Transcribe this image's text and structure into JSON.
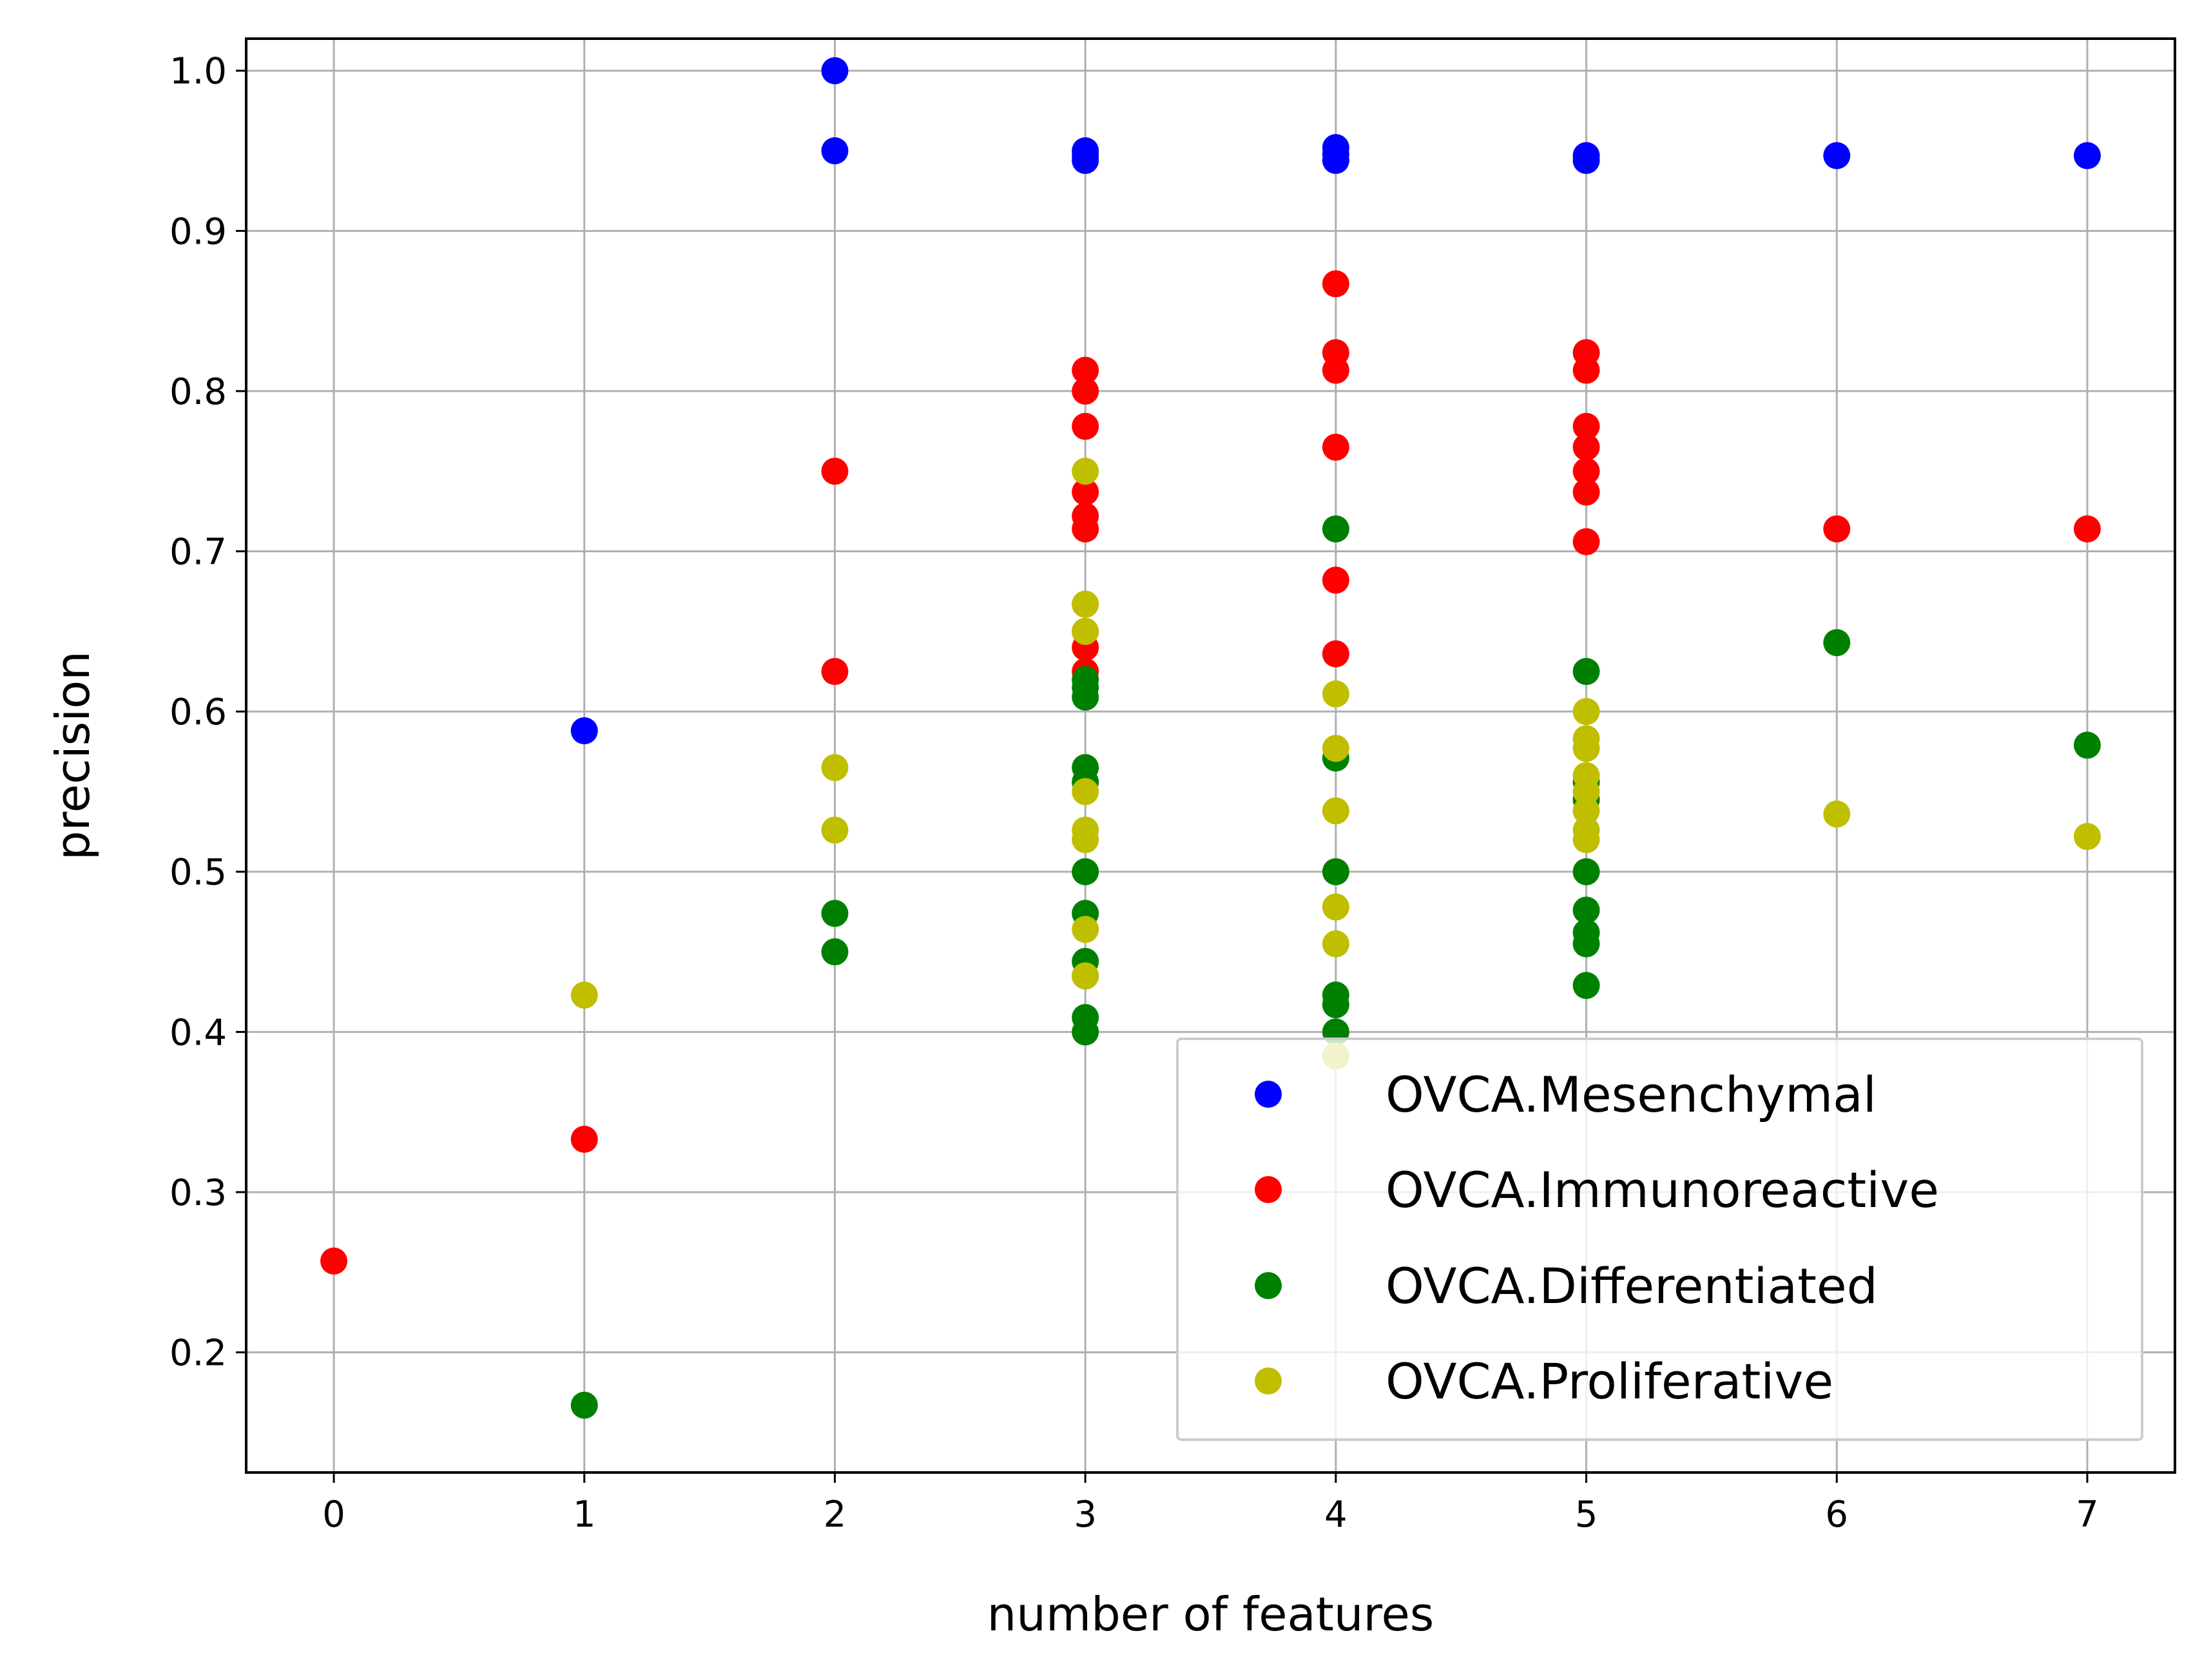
{
  "chart_data": {
    "type": "scatter",
    "title": "",
    "xlabel": "number of features",
    "ylabel": "precision",
    "xlim": [
      -0.35,
      7.35
    ],
    "ylim": [
      0.125,
      1.02
    ],
    "xticks": [
      0,
      1,
      2,
      3,
      4,
      5,
      6,
      7
    ],
    "yticks": [
      0.2,
      0.3,
      0.4,
      0.5,
      0.6,
      0.7,
      0.8,
      0.9,
      1.0
    ],
    "xtick_labels": [
      "0",
      "1",
      "2",
      "3",
      "4",
      "5",
      "6",
      "7"
    ],
    "ytick_labels": [
      "0.2",
      "0.3",
      "0.4",
      "0.5",
      "0.6",
      "0.7",
      "0.8",
      "0.9",
      "1.0"
    ],
    "grid": true,
    "legend_position": "bottom-right",
    "series": [
      {
        "name": "OVCA.Mesenchymal",
        "color": "#0000ff",
        "points": [
          [
            1,
            0.588
          ],
          [
            2,
            1.0
          ],
          [
            2,
            0.95
          ],
          [
            3,
            0.95
          ],
          [
            3,
            0.947
          ],
          [
            3,
            0.944
          ],
          [
            4,
            0.952
          ],
          [
            4,
            0.948
          ],
          [
            4,
            0.944
          ],
          [
            5,
            0.947
          ],
          [
            5,
            0.944
          ],
          [
            6,
            0.947
          ],
          [
            7,
            0.947
          ]
        ]
      },
      {
        "name": "OVCA.Immunoreactive",
        "color": "#ff0000",
        "points": [
          [
            0,
            0.257
          ],
          [
            1,
            0.333
          ],
          [
            2,
            0.75
          ],
          [
            2,
            0.625
          ],
          [
            3,
            0.813
          ],
          [
            3,
            0.8
          ],
          [
            3,
            0.778
          ],
          [
            3,
            0.737
          ],
          [
            3,
            0.722
          ],
          [
            3,
            0.714
          ],
          [
            3,
            0.667
          ],
          [
            3,
            0.65
          ],
          [
            3,
            0.64
          ],
          [
            3,
            0.625
          ],
          [
            4,
            0.867
          ],
          [
            4,
            0.824
          ],
          [
            4,
            0.813
          ],
          [
            4,
            0.765
          ],
          [
            4,
            0.682
          ],
          [
            4,
            0.636
          ],
          [
            5,
            0.824
          ],
          [
            5,
            0.813
          ],
          [
            5,
            0.778
          ],
          [
            5,
            0.765
          ],
          [
            5,
            0.75
          ],
          [
            5,
            0.737
          ],
          [
            5,
            0.706
          ],
          [
            6,
            0.714
          ],
          [
            7,
            0.714
          ]
        ]
      },
      {
        "name": "OVCA.Differentiated",
        "color": "#008000",
        "points": [
          [
            1,
            0.167
          ],
          [
            2,
            0.474
          ],
          [
            2,
            0.45
          ],
          [
            3,
            0.62
          ],
          [
            3,
            0.615
          ],
          [
            3,
            0.609
          ],
          [
            3,
            0.565
          ],
          [
            3,
            0.556
          ],
          [
            3,
            0.5
          ],
          [
            3,
            0.474
          ],
          [
            3,
            0.444
          ],
          [
            3,
            0.435
          ],
          [
            3,
            0.409
          ],
          [
            3,
            0.4
          ],
          [
            4,
            0.714
          ],
          [
            4,
            0.571
          ],
          [
            4,
            0.5
          ],
          [
            4,
            0.423
          ],
          [
            4,
            0.417
          ],
          [
            4,
            0.4
          ],
          [
            4,
            0.385
          ],
          [
            5,
            0.625
          ],
          [
            5,
            0.556
          ],
          [
            5,
            0.545
          ],
          [
            5,
            0.5
          ],
          [
            5,
            0.476
          ],
          [
            5,
            0.462
          ],
          [
            5,
            0.455
          ],
          [
            5,
            0.429
          ],
          [
            6,
            0.643
          ],
          [
            7,
            0.579
          ]
        ]
      },
      {
        "name": "OVCA.Proliferative",
        "color": "#bfbf00",
        "points": [
          [
            1,
            0.423
          ],
          [
            2,
            0.565
          ],
          [
            2,
            0.526
          ],
          [
            3,
            0.75
          ],
          [
            3,
            0.667
          ],
          [
            3,
            0.65
          ],
          [
            3,
            0.55
          ],
          [
            3,
            0.526
          ],
          [
            3,
            0.52
          ],
          [
            3,
            0.464
          ],
          [
            3,
            0.435
          ],
          [
            4,
            0.611
          ],
          [
            4,
            0.577
          ],
          [
            4,
            0.538
          ],
          [
            4,
            0.478
          ],
          [
            4,
            0.455
          ],
          [
            4,
            0.385
          ],
          [
            5,
            0.6
          ],
          [
            5,
            0.583
          ],
          [
            5,
            0.577
          ],
          [
            5,
            0.56
          ],
          [
            5,
            0.55
          ],
          [
            5,
            0.538
          ],
          [
            5,
            0.526
          ],
          [
            5,
            0.52
          ],
          [
            6,
            0.536
          ],
          [
            7,
            0.522
          ]
        ]
      }
    ]
  }
}
